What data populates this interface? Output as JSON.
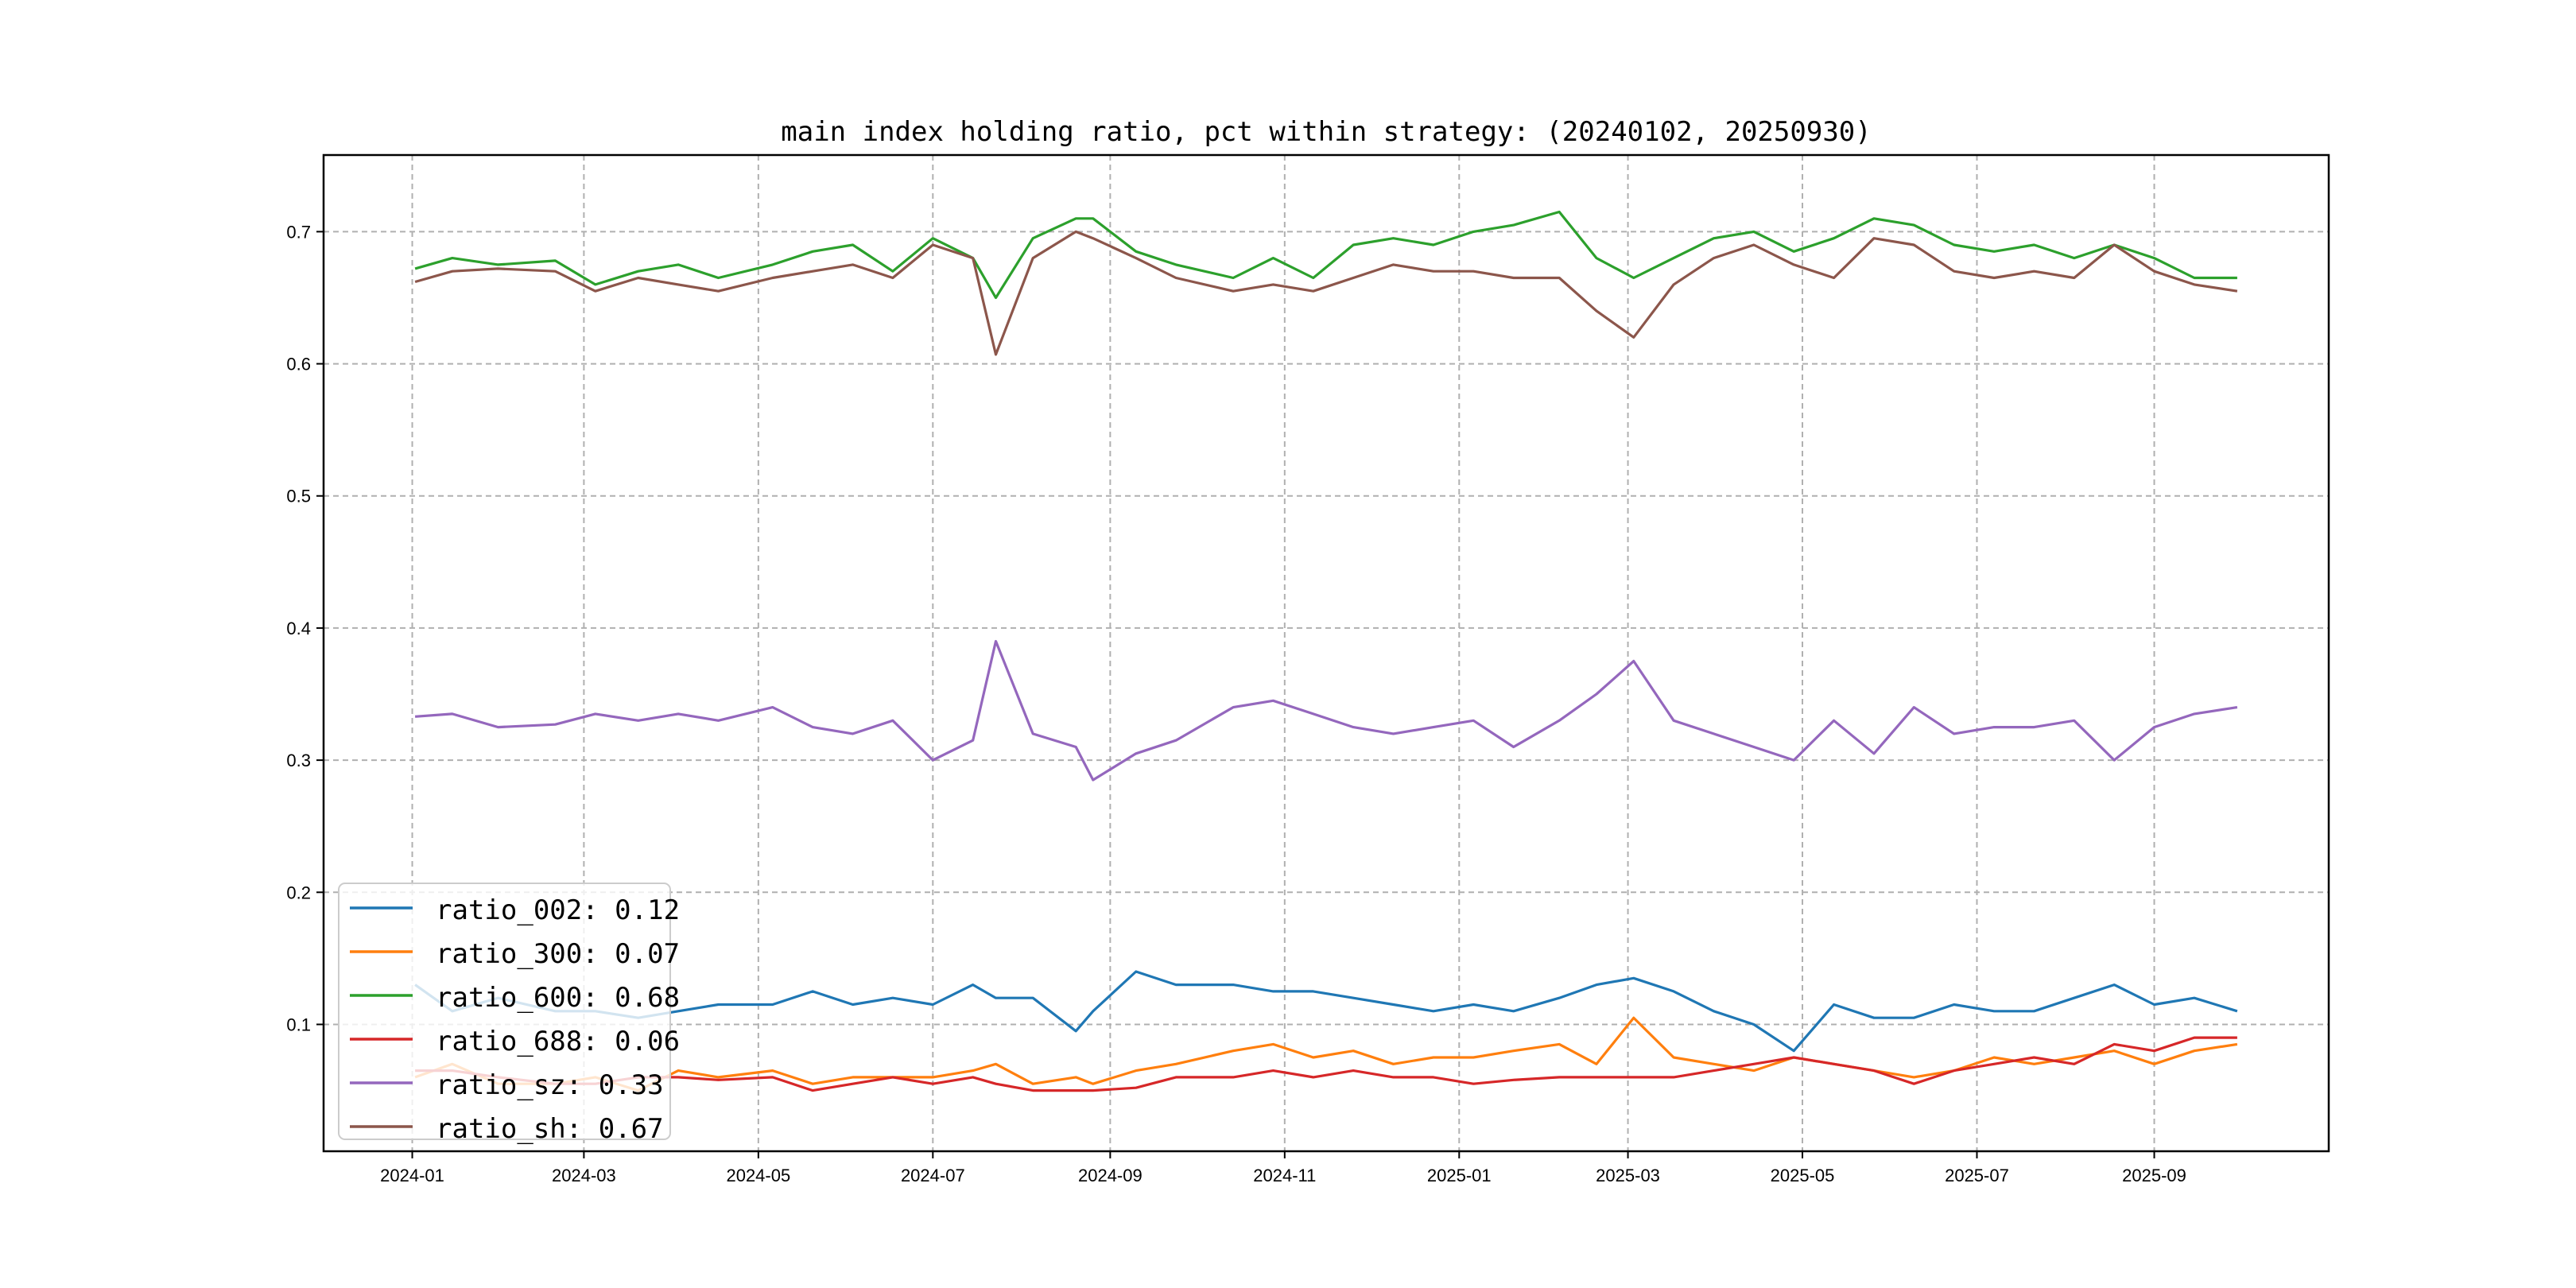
{
  "chart_data": {
    "type": "line",
    "title": "main index holding ratio, pct within strategy: (20240102, 20250930)",
    "xlabel": "",
    "ylabel": "",
    "xlim": [
      "2023-12-01",
      "2025-11-01"
    ],
    "ylim": [
      0.004,
      0.758
    ],
    "grid": true,
    "legend_placement": "lower-left",
    "x_ticks": [
      "2024-01",
      "2024-03",
      "2024-05",
      "2024-07",
      "2024-09",
      "2024-11",
      "2025-01",
      "2025-03",
      "2025-05",
      "2025-07",
      "2025-09"
    ],
    "y_ticks": [
      "0.1",
      "0.2",
      "0.3",
      "0.4",
      "0.5",
      "0.6",
      "0.7"
    ],
    "x": [
      "2024-01-02",
      "2024-01-15",
      "2024-01-31",
      "2024-02-20",
      "2024-03-05",
      "2024-03-20",
      "2024-04-03",
      "2024-04-17",
      "2024-05-06",
      "2024-05-20",
      "2024-06-03",
      "2024-06-17",
      "2024-07-01",
      "2024-07-15",
      "2024-07-23",
      "2024-08-05",
      "2024-08-20",
      "2024-08-26",
      "2024-09-10",
      "2024-09-24",
      "2024-10-14",
      "2024-10-28",
      "2024-11-11",
      "2024-11-25",
      "2024-12-09",
      "2024-12-23",
      "2025-01-06",
      "2025-01-20",
      "2025-02-05",
      "2025-02-18",
      "2025-03-03",
      "2025-03-17",
      "2025-03-31",
      "2025-04-14",
      "2025-04-28",
      "2025-05-12",
      "2025-05-26",
      "2025-06-09",
      "2025-06-23",
      "2025-07-07",
      "2025-07-21",
      "2025-08-04",
      "2025-08-18",
      "2025-09-01",
      "2025-09-15",
      "2025-09-30"
    ],
    "series": [
      {
        "name": "ratio_002",
        "legend": "ratio_002: 0.12",
        "color": "#1f77b4",
        "values": [
          0.13,
          0.11,
          0.12,
          0.11,
          0.11,
          0.105,
          0.11,
          0.115,
          0.115,
          0.125,
          0.115,
          0.12,
          0.115,
          0.13,
          0.12,
          0.12,
          0.095,
          0.11,
          0.14,
          0.13,
          0.13,
          0.125,
          0.125,
          0.12,
          0.115,
          0.11,
          0.115,
          0.11,
          0.12,
          0.13,
          0.135,
          0.125,
          0.11,
          0.1,
          0.08,
          0.115,
          0.105,
          0.105,
          0.115,
          0.11,
          0.11,
          0.12,
          0.13,
          0.115,
          0.12,
          0.11
        ]
      },
      {
        "name": "ratio_300",
        "legend": "ratio_300: 0.07",
        "color": "#ff7f0e",
        "values": [
          0.06,
          0.07,
          0.055,
          0.055,
          0.06,
          0.05,
          0.065,
          0.06,
          0.065,
          0.055,
          0.06,
          0.06,
          0.06,
          0.065,
          0.07,
          0.055,
          0.06,
          0.055,
          0.065,
          0.07,
          0.08,
          0.085,
          0.075,
          0.08,
          0.07,
          0.075,
          0.075,
          0.08,
          0.085,
          0.07,
          0.105,
          0.075,
          0.07,
          0.065,
          0.075,
          0.07,
          0.065,
          0.06,
          0.065,
          0.075,
          0.07,
          0.075,
          0.08,
          0.07,
          0.08,
          0.085
        ]
      },
      {
        "name": "ratio_600",
        "legend": "ratio_600: 0.68",
        "color": "#2ca02c",
        "values": [
          0.672,
          0.68,
          0.675,
          0.678,
          0.66,
          0.67,
          0.675,
          0.665,
          0.675,
          0.685,
          0.69,
          0.67,
          0.695,
          0.68,
          0.65,
          0.695,
          0.71,
          0.71,
          0.685,
          0.675,
          0.665,
          0.68,
          0.665,
          0.69,
          0.695,
          0.69,
          0.7,
          0.705,
          0.715,
          0.68,
          0.665,
          0.68,
          0.695,
          0.7,
          0.685,
          0.695,
          0.71,
          0.705,
          0.69,
          0.685,
          0.69,
          0.68,
          0.69,
          0.68,
          0.665,
          0.665
        ]
      },
      {
        "name": "ratio_688",
        "legend": "ratio_688: 0.06",
        "color": "#d62728",
        "values": [
          0.065,
          0.065,
          0.06,
          0.055,
          0.055,
          0.06,
          0.06,
          0.058,
          0.06,
          0.05,
          0.055,
          0.06,
          0.055,
          0.06,
          0.055,
          0.05,
          0.05,
          0.05,
          0.052,
          0.06,
          0.06,
          0.065,
          0.06,
          0.065,
          0.06,
          0.06,
          0.055,
          0.058,
          0.06,
          0.06,
          0.06,
          0.06,
          0.065,
          0.07,
          0.075,
          0.07,
          0.065,
          0.055,
          0.065,
          0.07,
          0.075,
          0.07,
          0.085,
          0.08,
          0.09,
          0.09
        ]
      },
      {
        "name": "ratio_sz",
        "legend": "ratio_sz: 0.33",
        "color": "#9467bd",
        "values": [
          0.333,
          0.335,
          0.325,
          0.327,
          0.335,
          0.33,
          0.335,
          0.33,
          0.34,
          0.325,
          0.32,
          0.33,
          0.3,
          0.315,
          0.39,
          0.32,
          0.31,
          0.285,
          0.305,
          0.315,
          0.34,
          0.345,
          0.335,
          0.325,
          0.32,
          0.325,
          0.33,
          0.31,
          0.33,
          0.35,
          0.375,
          0.33,
          0.32,
          0.31,
          0.3,
          0.33,
          0.305,
          0.34,
          0.32,
          0.325,
          0.325,
          0.33,
          0.3,
          0.325,
          0.335,
          0.34
        ]
      },
      {
        "name": "ratio_sh",
        "legend": "ratio_sh: 0.67",
        "color": "#8c564b",
        "values": [
          0.662,
          0.67,
          0.672,
          0.67,
          0.655,
          0.665,
          0.66,
          0.655,
          0.665,
          0.67,
          0.675,
          0.665,
          0.69,
          0.68,
          0.607,
          0.68,
          0.7,
          0.695,
          0.68,
          0.665,
          0.655,
          0.66,
          0.655,
          0.665,
          0.675,
          0.67,
          0.67,
          0.665,
          0.665,
          0.64,
          0.62,
          0.66,
          0.68,
          0.69,
          0.675,
          0.665,
          0.695,
          0.69,
          0.67,
          0.665,
          0.67,
          0.665,
          0.69,
          0.67,
          0.66,
          0.655
        ]
      }
    ]
  }
}
